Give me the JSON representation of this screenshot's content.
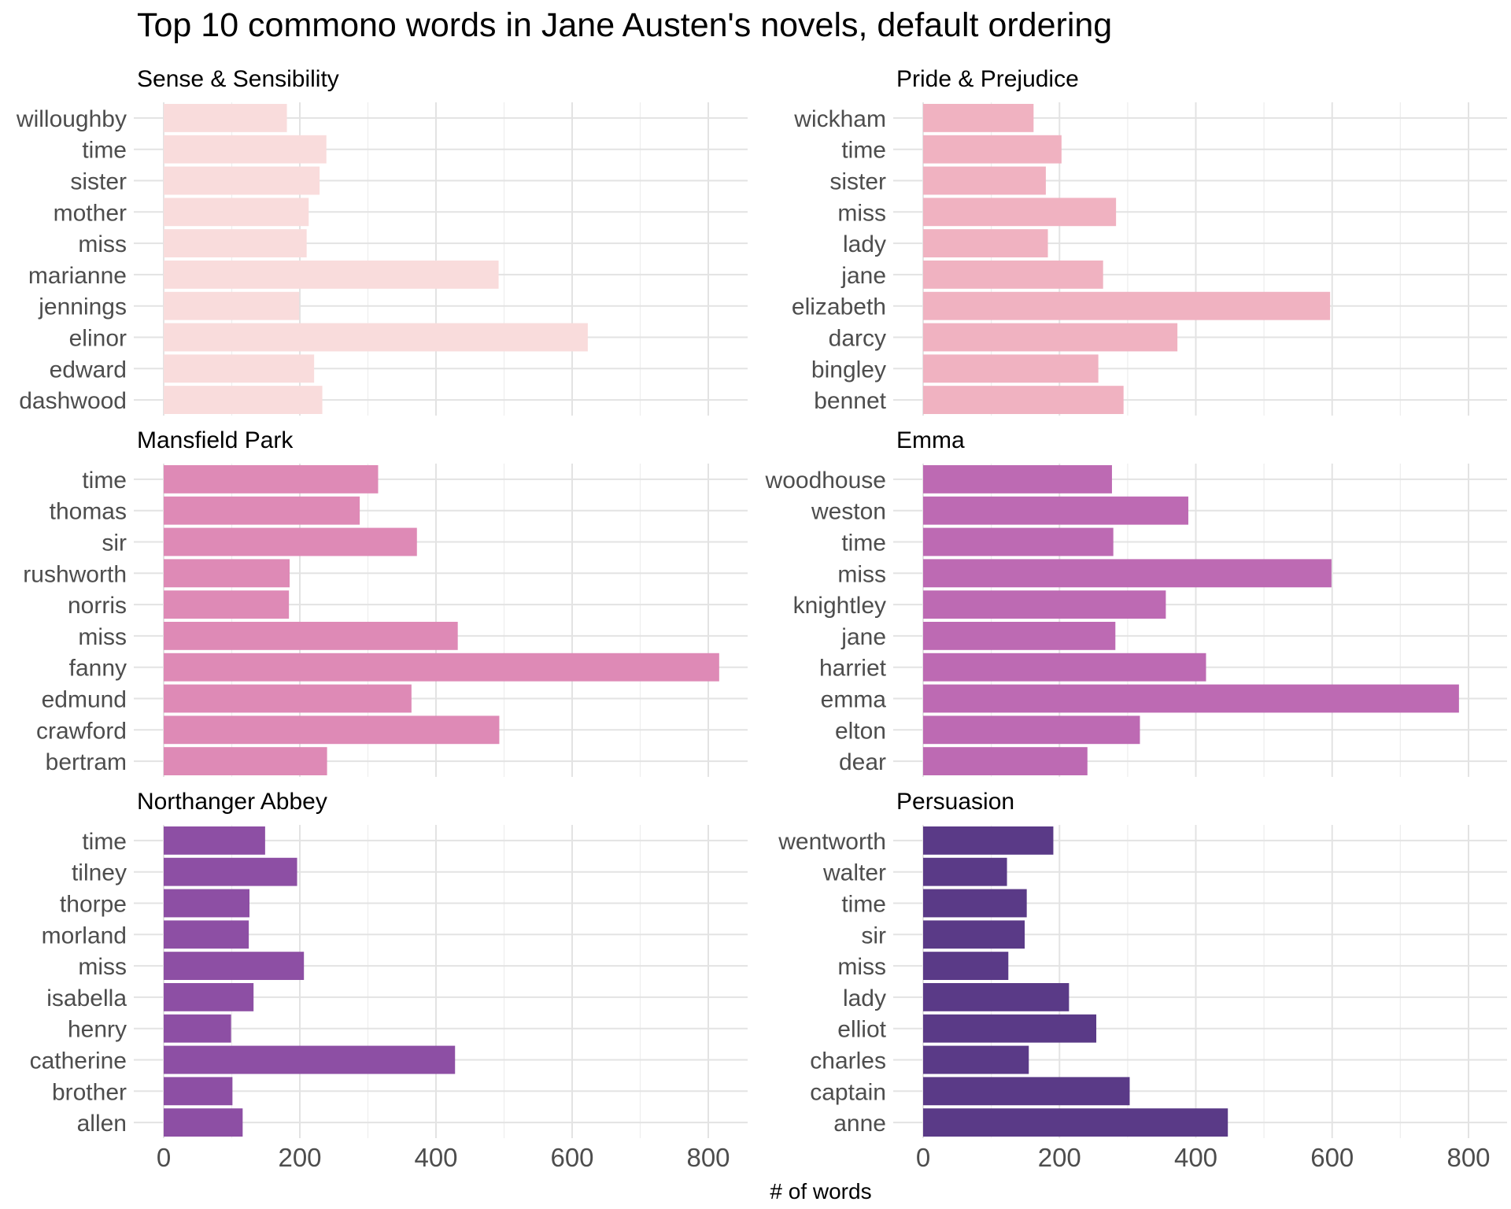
{
  "chart_data": {
    "type": "bar",
    "orientation": "horizontal",
    "title": "Top 10 commono words in Jane Austen's novels, default ordering",
    "xlabel": "# of words",
    "ylabel": "",
    "xlim": [
      0,
      850
    ],
    "x_ticks": [
      "0",
      "200",
      "400",
      "600",
      "800"
    ],
    "grid": true,
    "legend": "none",
    "facets": [
      {
        "name": "Sense & Sensibility",
        "color": "#f9dcdc",
        "categories": [
          "dashwood",
          "edward",
          "elinor",
          "jennings",
          "marianne",
          "miss",
          "mother",
          "sister",
          "time",
          "willoughby"
        ],
        "values": [
          233,
          221,
          623,
          199,
          492,
          210,
          213,
          229,
          239,
          181
        ]
      },
      {
        "name": "Pride & Prejudice",
        "color": "#f0b2c1",
        "categories": [
          "bennet",
          "bingley",
          "darcy",
          "elizabeth",
          "jane",
          "lady",
          "miss",
          "sister",
          "time",
          "wickham"
        ],
        "values": [
          294,
          257,
          373,
          597,
          264,
          183,
          283,
          180,
          203,
          162
        ]
      },
      {
        "name": "Mansfield Park",
        "color": "#de8ab6",
        "categories": [
          "bertram",
          "crawford",
          "edmund",
          "fanny",
          "miss",
          "norris",
          "rushworth",
          "sir",
          "thomas",
          "time"
        ],
        "values": [
          240,
          493,
          364,
          816,
          432,
          184,
          185,
          372,
          288,
          315
        ]
      },
      {
        "name": "Emma",
        "color": "#bd6ab3",
        "categories": [
          "dear",
          "elton",
          "emma",
          "harriet",
          "jane",
          "knightley",
          "miss",
          "time",
          "weston",
          "woodhouse"
        ],
        "values": [
          241,
          318,
          786,
          415,
          282,
          356,
          599,
          279,
          389,
          277
        ]
      },
      {
        "name": "Northanger Abbey",
        "color": "#8d4fa4",
        "categories": [
          "allen",
          "brother",
          "catherine",
          "henry",
          "isabella",
          "miss",
          "morland",
          "thorpe",
          "tilney",
          "time"
        ],
        "values": [
          116,
          101,
          428,
          99,
          132,
          206,
          125,
          126,
          196,
          149
        ]
      },
      {
        "name": "Persuasion",
        "color": "#5a3a87",
        "categories": [
          "anne",
          "captain",
          "charles",
          "elliot",
          "lady",
          "miss",
          "sir",
          "time",
          "walter",
          "wentworth"
        ],
        "values": [
          447,
          303,
          155,
          254,
          214,
          125,
          149,
          152,
          123,
          191
        ]
      }
    ]
  }
}
